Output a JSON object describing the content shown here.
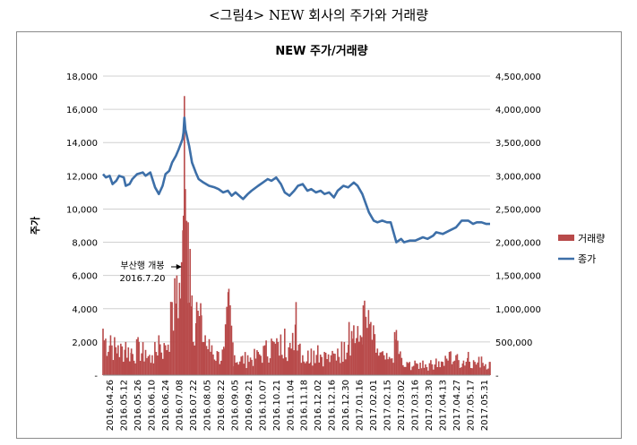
{
  "caption": "<그림4> NEW 회사의 주가와 거래량",
  "chart_data": {
    "type": "bar-line",
    "title": "NEW 주가/거래량",
    "ylabel_left": "주가",
    "y_left_ticks": [
      "-",
      "2,000",
      "4,000",
      "6,000",
      "8,000",
      "10,000",
      "12,000",
      "14,000",
      "16,000",
      "18,000"
    ],
    "y_right_ticks": [
      "-",
      "500,000",
      "1,000,000",
      "1,500,000",
      "2,000,000",
      "2,500,000",
      "3,000,000",
      "3,500,000",
      "4,000,000",
      "4,500,000"
    ],
    "ylim_left": [
      0,
      18000
    ],
    "ylim_right": [
      0,
      4500000
    ],
    "date_range": [
      "2016.04.26",
      "2017.06.09"
    ],
    "x_ticks": [
      "2016.04.26",
      "2016.05.12",
      "2016.05.26",
      "2016.06.10",
      "2016.06.24",
      "2016.07.08",
      "2016.07.22",
      "2016.08.05",
      "2016.08.22",
      "2016.09.05",
      "2016.09.21",
      "2016.10.07",
      "2016.10.21",
      "2016.11.04",
      "2016.11.18",
      "2016.12.02",
      "2016.12.16",
      "2016.12.30",
      "2017.01.16",
      "2017.02.01",
      "2017.02.15",
      "2017.03.02",
      "2017.03.16",
      "2017.03.30",
      "2017.04.13",
      "2017.04.27",
      "2017.05.17",
      "2017.05.31"
    ],
    "legend": [
      {
        "name": "거래량",
        "color": "#b84a4a",
        "kind": "bar"
      },
      {
        "name": "종가",
        "color": "#3d6fa8",
        "kind": "line"
      }
    ],
    "legend_position": "right",
    "annotation": {
      "line1": "부산행 개봉",
      "line2": "2016.7.20",
      "date": "2016.07.20"
    },
    "price_series": {
      "name": "종가",
      "axis": "left",
      "points": [
        [
          "2016.04.26",
          12100
        ],
        [
          "2016.04.29",
          11900
        ],
        [
          "2016.05.03",
          12000
        ],
        [
          "2016.05.06",
          11500
        ],
        [
          "2016.05.10",
          11700
        ],
        [
          "2016.05.13",
          12000
        ],
        [
          "2016.05.18",
          11900
        ],
        [
          "2016.05.20",
          11400
        ],
        [
          "2016.05.24",
          11500
        ],
        [
          "2016.05.27",
          11800
        ],
        [
          "2016.06.01",
          12100
        ],
        [
          "2016.06.07",
          12200
        ],
        [
          "2016.06.10",
          12000
        ],
        [
          "2016.06.15",
          12200
        ],
        [
          "2016.06.20",
          11300
        ],
        [
          "2016.06.24",
          10900
        ],
        [
          "2016.06.28",
          11400
        ],
        [
          "2016.07.01",
          12100
        ],
        [
          "2016.07.05",
          12300
        ],
        [
          "2016.07.08",
          12800
        ],
        [
          "2016.07.12",
          13200
        ],
        [
          "2016.07.15",
          13600
        ],
        [
          "2016.07.19",
          14200
        ],
        [
          "2016.07.20",
          14600
        ],
        [
          "2016.07.21",
          15500
        ],
        [
          "2016.07.22",
          14800
        ],
        [
          "2016.07.26",
          13800
        ],
        [
          "2016.07.29",
          12800
        ],
        [
          "2016.08.02",
          12200
        ],
        [
          "2016.08.05",
          11800
        ],
        [
          "2016.08.10",
          11600
        ],
        [
          "2016.08.16",
          11400
        ],
        [
          "2016.08.22",
          11300
        ],
        [
          "2016.08.26",
          11200
        ],
        [
          "2016.08.31",
          11000
        ],
        [
          "2016.09.05",
          11100
        ],
        [
          "2016.09.09",
          10800
        ],
        [
          "2016.09.13",
          11000
        ],
        [
          "2016.09.21",
          10600
        ],
        [
          "2016.09.26",
          10900
        ],
        [
          "2016.09.30",
          11100
        ],
        [
          "2016.10.07",
          11400
        ],
        [
          "2016.10.12",
          11600
        ],
        [
          "2016.10.17",
          11800
        ],
        [
          "2016.10.21",
          11700
        ],
        [
          "2016.10.26",
          11900
        ],
        [
          "2016.10.31",
          11500
        ],
        [
          "2016.11.04",
          11000
        ],
        [
          "2016.11.09",
          10800
        ],
        [
          "2016.11.14",
          11100
        ],
        [
          "2016.11.18",
          11400
        ],
        [
          "2016.11.23",
          11500
        ],
        [
          "2016.11.28",
          11100
        ],
        [
          "2016.12.02",
          11200
        ],
        [
          "2016.12.07",
          11000
        ],
        [
          "2016.12.12",
          11100
        ],
        [
          "2016.12.16",
          10900
        ],
        [
          "2016.12.21",
          11000
        ],
        [
          "2016.12.26",
          10700
        ],
        [
          "2016.12.30",
          11100
        ],
        [
          "2017.01.05",
          11400
        ],
        [
          "2017.01.10",
          11300
        ],
        [
          "2017.01.16",
          11600
        ],
        [
          "2017.01.20",
          11400
        ],
        [
          "2017.01.25",
          10900
        ],
        [
          "2017.02.01",
          9800
        ],
        [
          "2017.02.06",
          9300
        ],
        [
          "2017.02.10",
          9200
        ],
        [
          "2017.02.15",
          9300
        ],
        [
          "2017.02.20",
          9200
        ],
        [
          "2017.02.24",
          9200
        ],
        [
          "2017.03.02",
          8000
        ],
        [
          "2017.03.07",
          8200
        ],
        [
          "2017.03.10",
          8000
        ],
        [
          "2017.03.16",
          8100
        ],
        [
          "2017.03.22",
          8100
        ],
        [
          "2017.03.30",
          8300
        ],
        [
          "2017.04.04",
          8200
        ],
        [
          "2017.04.10",
          8400
        ],
        [
          "2017.04.13",
          8600
        ],
        [
          "2017.04.20",
          8500
        ],
        [
          "2017.04.27",
          8700
        ],
        [
          "2017.05.04",
          8900
        ],
        [
          "2017.05.10",
          9300
        ],
        [
          "2017.05.17",
          9300
        ],
        [
          "2017.05.22",
          9100
        ],
        [
          "2017.05.26",
          9200
        ],
        [
          "2017.05.31",
          9200
        ],
        [
          "2017.06.05",
          9100
        ],
        [
          "2017.06.09",
          9100
        ]
      ]
    },
    "volume_series": {
      "name": "거래량",
      "axis": "right",
      "points": [
        [
          "2016.04.26",
          700000
        ],
        [
          "2016.05.04",
          600000
        ],
        [
          "2016.05.12",
          450000
        ],
        [
          "2016.05.20",
          500000
        ],
        [
          "2016.05.26",
          400000
        ],
        [
          "2016.06.03",
          500000
        ],
        [
          "2016.06.10",
          380000
        ],
        [
          "2016.06.17",
          300000
        ],
        [
          "2016.06.24",
          600000
        ],
        [
          "2016.07.01",
          450000
        ],
        [
          "2016.07.08",
          1100000
        ],
        [
          "2016.07.13",
          1500000
        ],
        [
          "2016.07.18",
          1700000
        ],
        [
          "2016.07.20",
          2400000
        ],
        [
          "2016.07.21",
          4200000
        ],
        [
          "2016.07.22",
          2800000
        ],
        [
          "2016.07.25",
          2300000
        ],
        [
          "2016.07.27",
          1900000
        ],
        [
          "2016.07.29",
          1200000
        ],
        [
          "2016.08.03",
          1100000
        ],
        [
          "2016.08.08",
          900000
        ],
        [
          "2016.08.12",
          600000
        ],
        [
          "2016.08.19",
          450000
        ],
        [
          "2016.08.26",
          350000
        ],
        [
          "2016.09.01",
          400000
        ],
        [
          "2016.09.06",
          1300000
        ],
        [
          "2016.09.12",
          300000
        ],
        [
          "2016.09.26",
          300000
        ],
        [
          "2016.10.07",
          350000
        ],
        [
          "2016.10.14",
          450000
        ],
        [
          "2016.10.21",
          550000
        ],
        [
          "2016.10.28",
          500000
        ],
        [
          "2016.11.04",
          700000
        ],
        [
          "2016.11.11",
          400000
        ],
        [
          "2016.11.16",
          1100000
        ],
        [
          "2016.11.23",
          300000
        ],
        [
          "2016.12.02",
          400000
        ],
        [
          "2016.12.09",
          450000
        ],
        [
          "2016.12.16",
          350000
        ],
        [
          "2016.12.23",
          300000
        ],
        [
          "2016.12.30",
          400000
        ],
        [
          "2017.01.06",
          500000
        ],
        [
          "2017.01.11",
          800000
        ],
        [
          "2017.01.16",
          750000
        ],
        [
          "2017.01.23",
          600000
        ],
        [
          "2017.01.26",
          1050000
        ],
        [
          "2017.02.03",
          800000
        ],
        [
          "2017.02.10",
          400000
        ],
        [
          "2017.02.17",
          300000
        ],
        [
          "2017.02.24",
          250000
        ],
        [
          "2017.03.02",
          680000
        ],
        [
          "2017.03.09",
          150000
        ],
        [
          "2017.03.16",
          200000
        ],
        [
          "2017.03.23",
          180000
        ],
        [
          "2017.03.30",
          220000
        ],
        [
          "2017.04.06",
          180000
        ],
        [
          "2017.04.13",
          250000
        ],
        [
          "2017.04.20",
          200000
        ],
        [
          "2017.04.27",
          350000
        ],
        [
          "2017.05.04",
          300000
        ],
        [
          "2017.05.12",
          220000
        ],
        [
          "2017.05.17",
          350000
        ],
        [
          "2017.05.24",
          200000
        ],
        [
          "2017.05.31",
          280000
        ],
        [
          "2017.06.09",
          200000
        ]
      ]
    }
  }
}
